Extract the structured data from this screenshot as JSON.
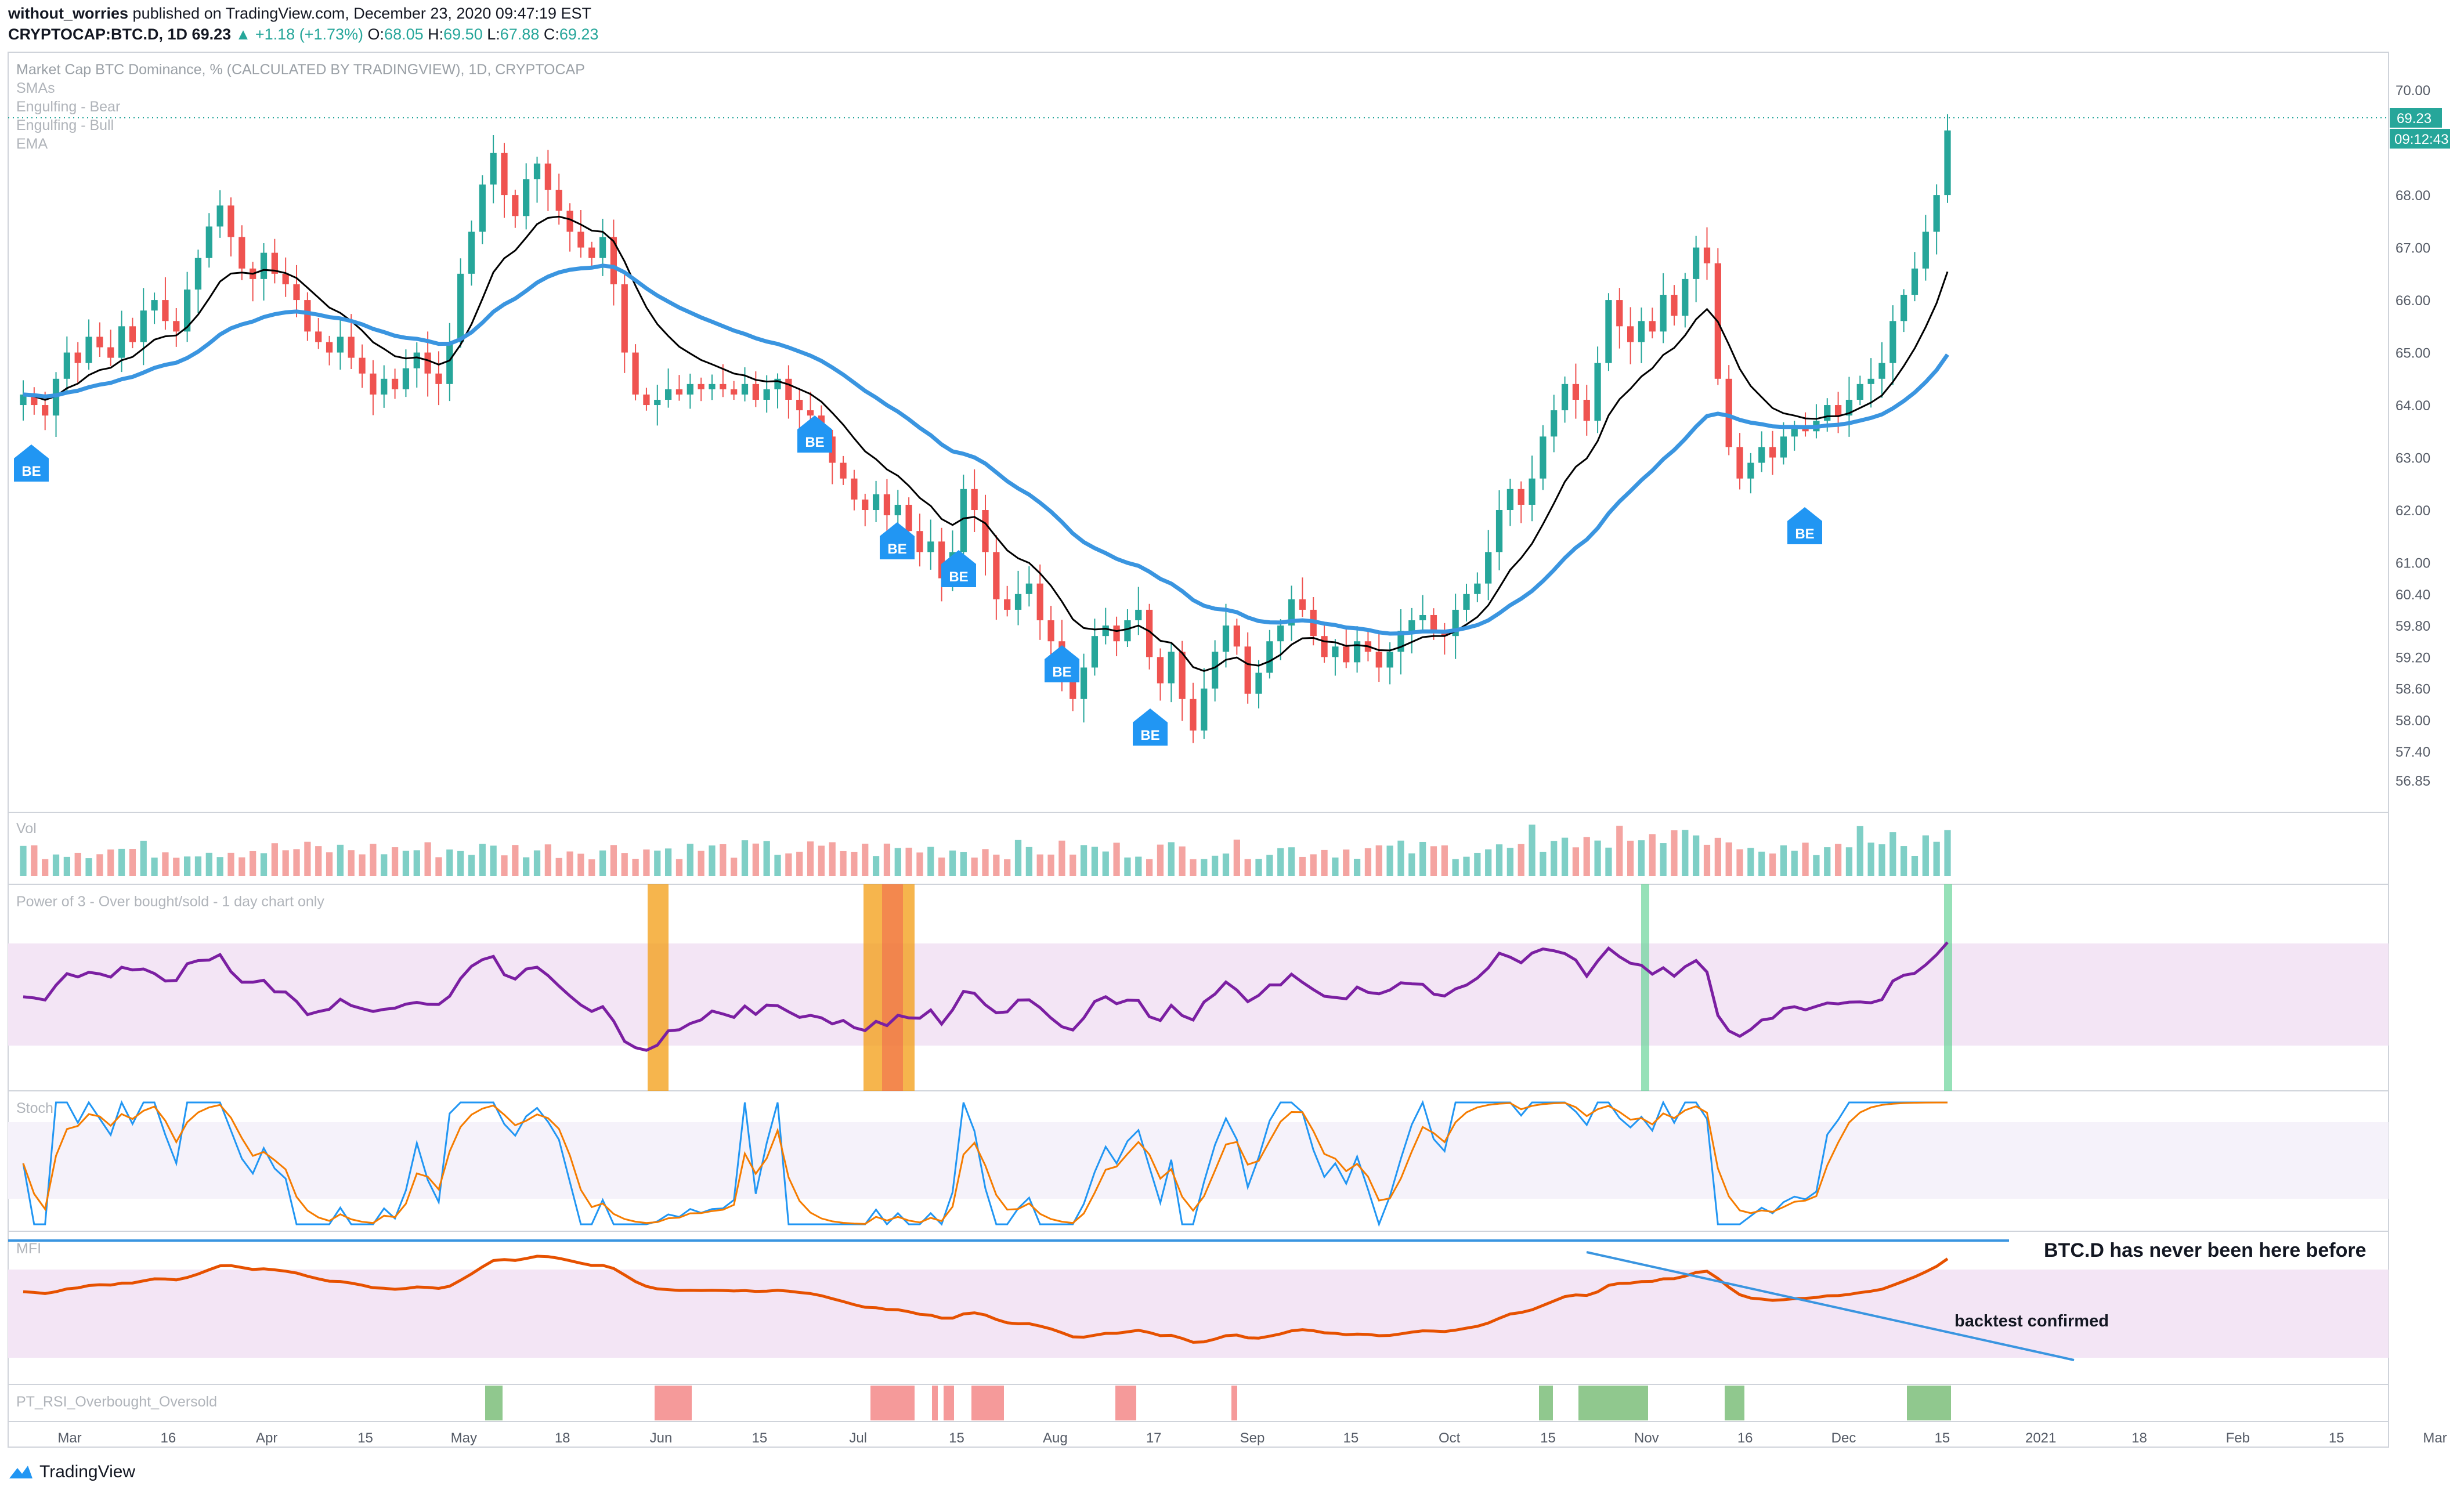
{
  "header": {
    "author": "without_worries",
    "published": "published on TradingView.com, December 23, 2020 09:47:19 EST",
    "symbol": "CRYPTOCAP:BTC.D, 1D",
    "last": "69.23",
    "change": "+1.18 (+1.73%)",
    "o_label": "O:",
    "o": "68.05",
    "h_label": "H:",
    "h": "69.50",
    "l_label": "L:",
    "l": "67.88",
    "c_label": "C:",
    "c": "69.23"
  },
  "legend": {
    "title": "Market Cap BTC Dominance, % (CALCULATED BY TRADINGVIEW), 1D, CRYPTOCAP",
    "items": [
      "SMAs",
      "Engulfing - Bear",
      "Engulfing - Bull",
      "EMA"
    ]
  },
  "panes": {
    "vol": "Vol",
    "power3": "Power of 3 - Over bought/sold - 1 day chart only",
    "stoch": "Stoch",
    "mfi": "MFI",
    "pt": "PT_RSI_Overbought_Oversold"
  },
  "annotations": {
    "never_been": "BTC.D has never been here before",
    "backtest": "backtest confirmed",
    "be_label": "BE"
  },
  "price_badge": "69.23",
  "countdown_badge": "09:12:43",
  "colors": {
    "up": "#26a69a",
    "down": "#ef5350",
    "ma_fast": "#000000",
    "ma_slow": "#3a95e0",
    "rsi": "#7b1fa2",
    "stoch_k": "#2196f3",
    "stoch_d": "#f57c00",
    "mfi": "#e65100",
    "badge": "#26a69a",
    "be": "#2196f3"
  },
  "footer": {
    "brand": "TradingView"
  },
  "chart_data": {
    "type": "candlestick",
    "x_ticks": [
      "Mar",
      "16",
      "Apr",
      "15",
      "May",
      "18",
      "Jun",
      "15",
      "Jul",
      "15",
      "Aug",
      "17",
      "Sep",
      "15",
      "Oct",
      "15",
      "Nov",
      "16",
      "Dec",
      "15",
      "2021",
      "18",
      "Feb",
      "15",
      "Mar"
    ],
    "y_ticks": [
      "70.00",
      "68.00",
      "67.00",
      "66.00",
      "65.00",
      "64.00",
      "63.00",
      "62.00",
      "61.00",
      "60.40",
      "59.80",
      "59.20",
      "58.60",
      "58.00",
      "57.40",
      "56.85"
    ],
    "close_series": [
      64.2,
      64.0,
      63.8,
      64.5,
      65.0,
      64.8,
      65.3,
      65.1,
      64.9,
      65.5,
      65.2,
      65.8,
      66.0,
      65.6,
      65.4,
      66.2,
      66.8,
      67.4,
      67.8,
      67.2,
      66.6,
      66.4,
      66.9,
      66.5,
      66.3,
      66.0,
      65.4,
      65.2,
      65.0,
      65.3,
      64.9,
      64.6,
      64.2,
      64.5,
      64.3,
      64.7,
      65.0,
      64.6,
      64.4,
      65.2,
      66.5,
      67.3,
      68.2,
      68.8,
      68.0,
      67.6,
      68.3,
      68.6,
      68.1,
      67.7,
      67.3,
      67.0,
      66.8,
      67.2,
      66.3,
      65.0,
      64.2,
      64.0,
      64.1,
      64.3,
      64.2,
      64.4,
      64.3,
      64.4,
      64.3,
      64.2,
      64.4,
      64.1,
      64.3,
      64.5,
      64.1,
      63.9,
      63.8,
      63.4,
      62.9,
      62.6,
      62.2,
      62.0,
      62.3,
      61.9,
      62.1,
      61.6,
      61.2,
      61.4,
      60.7,
      61.2,
      62.4,
      62.0,
      61.2,
      60.3,
      60.1,
      60.4,
      60.6,
      59.9,
      59.5,
      58.9,
      58.4,
      59.0,
      59.6,
      59.8,
      59.5,
      59.9,
      60.1,
      59.2,
      58.7,
      59.3,
      58.4,
      57.8,
      58.6,
      59.3,
      59.8,
      59.4,
      58.5,
      58.9,
      59.5,
      59.8,
      60.3,
      60.1,
      59.6,
      59.2,
      59.4,
      59.1,
      59.5,
      59.3,
      59.0,
      59.3,
      59.7,
      59.9,
      60.0,
      59.7,
      59.6,
      60.1,
      60.4,
      60.6,
      61.2,
      62.0,
      62.4,
      62.1,
      62.6,
      63.4,
      63.9,
      64.4,
      64.1,
      63.7,
      64.8,
      66.0,
      65.5,
      65.2,
      65.6,
      65.4,
      66.1,
      65.7,
      66.4,
      67.0,
      66.7,
      64.5,
      63.2,
      62.6,
      62.9,
      63.2,
      63.0,
      63.4,
      63.6,
      63.5,
      63.7,
      64.0,
      63.8,
      64.1,
      64.4,
      64.5,
      64.8,
      65.6,
      66.1,
      66.6,
      67.3,
      68.0,
      69.23
    ],
    "series": [
      {
        "name": "Vol",
        "values": []
      },
      {
        "name": "EMA",
        "values": []
      }
    ],
    "signals_BE": 7,
    "annotation_lines": [
      "horizontal line at MFI 100",
      "descending trendline on MFI"
    ]
  }
}
